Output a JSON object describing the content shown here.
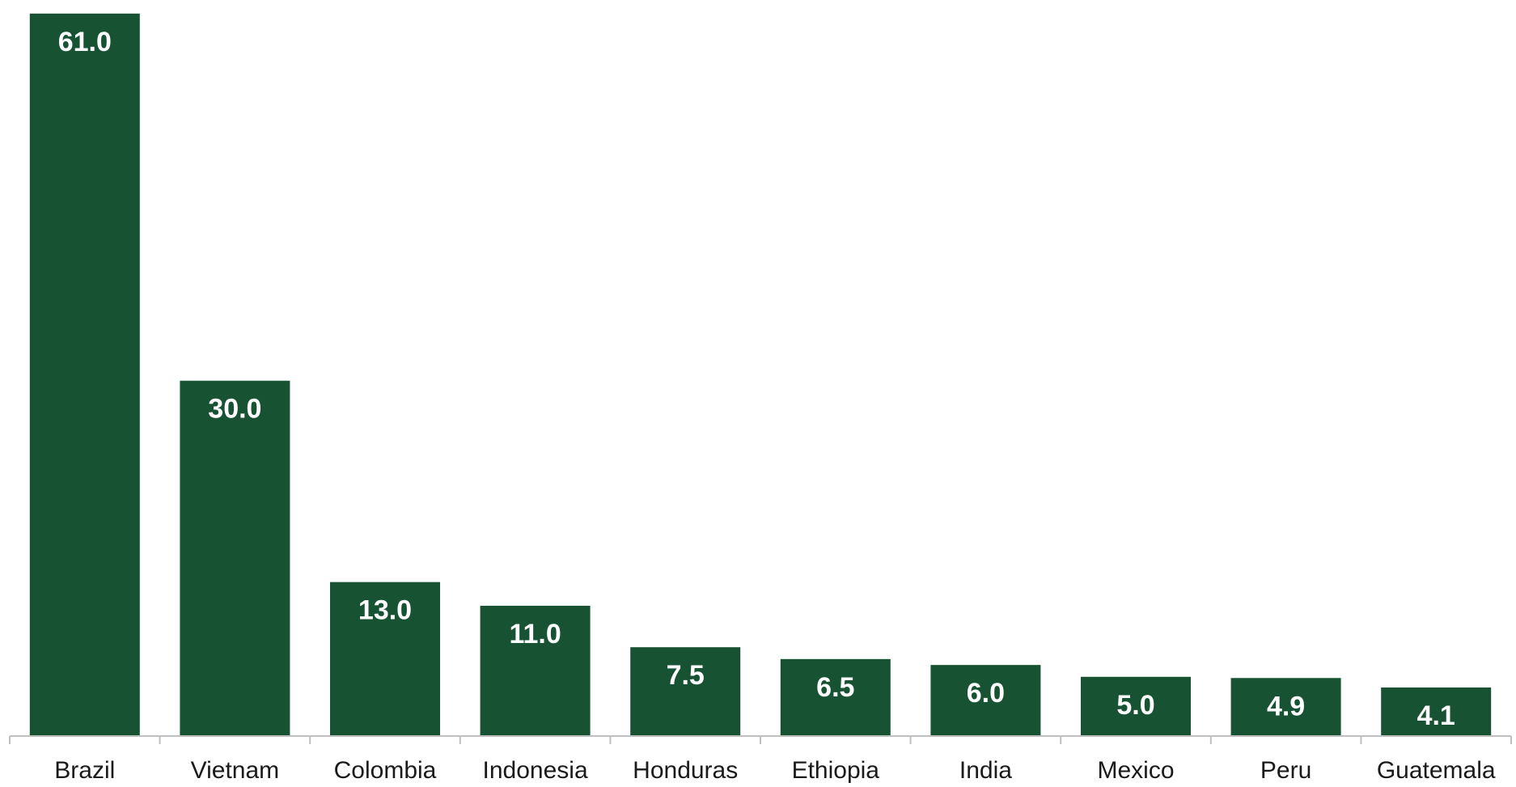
{
  "chart_data": {
    "type": "bar",
    "categories": [
      "Brazil",
      "Vietnam",
      "Colombia",
      "Indonesia",
      "Honduras",
      "Ethiopia",
      "India",
      "Mexico",
      "Peru",
      "Guatemala"
    ],
    "values": [
      61.0,
      30.0,
      13.0,
      11.0,
      7.5,
      6.5,
      6.0,
      5.0,
      4.9,
      4.1
    ],
    "data_labels": [
      "61.0",
      "30.0",
      "13.0",
      "11.0",
      "7.5",
      "6.5",
      "6.0",
      "5.0",
      "4.9",
      "4.1"
    ],
    "title": "",
    "xlabel": "",
    "ylabel": "",
    "ylim": [
      0,
      61.6
    ],
    "grid": false,
    "legend": "none",
    "colors": {
      "bar": "#175232",
      "label": "#ffffff",
      "axis": "#bfbfbf"
    }
  }
}
